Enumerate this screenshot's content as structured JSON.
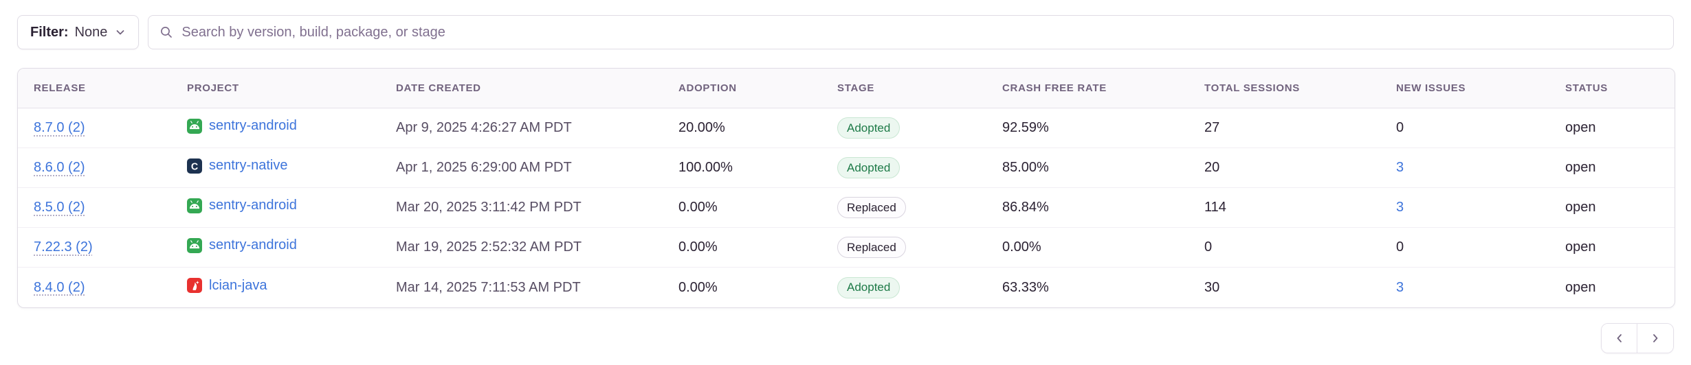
{
  "filter_button": {
    "label": "Filter:",
    "value": "None"
  },
  "search": {
    "placeholder": "Search by version, build, package, or stage"
  },
  "table": {
    "columns": [
      "RELEASE",
      "PROJECT",
      "DATE CREATED",
      "ADOPTION",
      "STAGE",
      "CRASH FREE RATE",
      "TOTAL SESSIONS",
      "NEW ISSUES",
      "STATUS"
    ],
    "rows": [
      {
        "release": "8.7.0 (2)",
        "project": "sentry-android",
        "platform_icon": "android-icon",
        "date_created": "Apr 9, 2025 4:26:27 AM PDT",
        "adoption": "20.00%",
        "stage": "Adopted",
        "stage_variant": "adopted",
        "crash_free_rate": "92.59%",
        "total_sessions": "27",
        "new_issues": "0",
        "new_issues_is_link": false,
        "status": "open"
      },
      {
        "release": "8.6.0 (2)",
        "project": "sentry-native",
        "platform_icon": "c-icon",
        "date_created": "Apr 1, 2025 6:29:00 AM PDT",
        "adoption": "100.00%",
        "stage": "Adopted",
        "stage_variant": "adopted",
        "crash_free_rate": "85.00%",
        "total_sessions": "20",
        "new_issues": "3",
        "new_issues_is_link": true,
        "status": "open"
      },
      {
        "release": "8.5.0 (2)",
        "project": "sentry-android",
        "platform_icon": "android-icon",
        "date_created": "Mar 20, 2025 3:11:42 PM PDT",
        "adoption": "0.00%",
        "stage": "Replaced",
        "stage_variant": "replaced",
        "crash_free_rate": "86.84%",
        "total_sessions": "114",
        "new_issues": "3",
        "new_issues_is_link": true,
        "status": "open"
      },
      {
        "release": "7.22.3 (2)",
        "project": "sentry-android",
        "platform_icon": "android-icon",
        "date_created": "Mar 19, 2025 2:52:32 AM PDT",
        "adoption": "0.00%",
        "stage": "Replaced",
        "stage_variant": "replaced",
        "crash_free_rate": "0.00%",
        "total_sessions": "0",
        "new_issues": "0",
        "new_issues_is_link": false,
        "status": "open"
      },
      {
        "release": "8.4.0 (2)",
        "project": "lcian-java",
        "platform_icon": "java-icon",
        "date_created": "Mar 14, 2025 7:11:53 AM PDT",
        "adoption": "0.00%",
        "stage": "Adopted",
        "stage_variant": "adopted",
        "crash_free_rate": "63.33%",
        "total_sessions": "30",
        "new_issues": "3",
        "new_issues_is_link": true,
        "status": "open"
      }
    ]
  },
  "pagination": {
    "previous_icon": "chevron-left",
    "next_icon": "chevron-right"
  },
  "colors": {
    "link_blue": "#3D74DB",
    "body_text": "#2B2233",
    "header_text": "#71637E",
    "border": "#E0DCE5",
    "adopted_text": "#1D7A47",
    "adopted_bg": "#ECF7F0",
    "android_green": "#34A853",
    "native_navy": "#1D3250",
    "java_red": "#E8312F"
  }
}
